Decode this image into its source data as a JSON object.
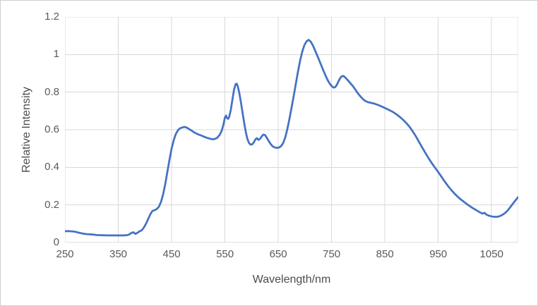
{
  "colors": {
    "series_line": "#4472C4",
    "gridline": "#D9D9D9",
    "axis_line": "#BFBFBF",
    "tick_text": "#595959",
    "title_text": "#4D4D4D",
    "background": "#FFFFFF",
    "frame_border": "#D0D0D0"
  },
  "chart_data": {
    "type": "line",
    "title": "",
    "xlabel": "Wavelength/nm",
    "ylabel": "Relative Intensity",
    "xlim": [
      250,
      1100
    ],
    "ylim": [
      0,
      1.2
    ],
    "x_ticks": [
      "250",
      "350",
      "450",
      "550",
      "650",
      "750",
      "850",
      "950",
      "1050"
    ],
    "y_ticks": [
      "0",
      "0.2",
      "0.4",
      "0.6",
      "0.8",
      "1",
      "1.2"
    ],
    "grid": true,
    "legend": "none",
    "line_smooth": true,
    "series": [
      {
        "name": "Relative Intensity",
        "color": "#4472C4",
        "points": [
          [
            250,
            0.06
          ],
          [
            255,
            0.061
          ],
          [
            260,
            0.06
          ],
          [
            265,
            0.059
          ],
          [
            270,
            0.057
          ],
          [
            275,
            0.053
          ],
          [
            280,
            0.05
          ],
          [
            285,
            0.047
          ],
          [
            290,
            0.045
          ],
          [
            295,
            0.044
          ],
          [
            300,
            0.043
          ],
          [
            310,
            0.04
          ],
          [
            320,
            0.039
          ],
          [
            330,
            0.038
          ],
          [
            340,
            0.038
          ],
          [
            350,
            0.038
          ],
          [
            360,
            0.038
          ],
          [
            365,
            0.039
          ],
          [
            370,
            0.042
          ],
          [
            374,
            0.05
          ],
          [
            378,
            0.055
          ],
          [
            382,
            0.046
          ],
          [
            386,
            0.052
          ],
          [
            390,
            0.06
          ],
          [
            394,
            0.065
          ],
          [
            398,
            0.08
          ],
          [
            402,
            0.1
          ],
          [
            406,
            0.125
          ],
          [
            410,
            0.15
          ],
          [
            414,
            0.168
          ],
          [
            418,
            0.172
          ],
          [
            422,
            0.178
          ],
          [
            426,
            0.19
          ],
          [
            430,
            0.215
          ],
          [
            434,
            0.255
          ],
          [
            438,
            0.31
          ],
          [
            442,
            0.375
          ],
          [
            446,
            0.44
          ],
          [
            450,
            0.5
          ],
          [
            454,
            0.545
          ],
          [
            458,
            0.578
          ],
          [
            462,
            0.598
          ],
          [
            466,
            0.608
          ],
          [
            470,
            0.612
          ],
          [
            474,
            0.615
          ],
          [
            478,
            0.612
          ],
          [
            482,
            0.605
          ],
          [
            486,
            0.598
          ],
          [
            490,
            0.59
          ],
          [
            495,
            0.582
          ],
          [
            500,
            0.575
          ],
          [
            505,
            0.57
          ],
          [
            510,
            0.564
          ],
          [
            515,
            0.558
          ],
          [
            520,
            0.554
          ],
          [
            525,
            0.55
          ],
          [
            530,
            0.55
          ],
          [
            535,
            0.556
          ],
          [
            540,
            0.572
          ],
          [
            544,
            0.595
          ],
          [
            547,
            0.625
          ],
          [
            550,
            0.665
          ],
          [
            552,
            0.675
          ],
          [
            554,
            0.662
          ],
          [
            556,
            0.658
          ],
          [
            558,
            0.668
          ],
          [
            561,
            0.705
          ],
          [
            564,
            0.76
          ],
          [
            567,
            0.812
          ],
          [
            570,
            0.842
          ],
          [
            572,
            0.845
          ],
          [
            574,
            0.832
          ],
          [
            577,
            0.795
          ],
          [
            580,
            0.745
          ],
          [
            583,
            0.692
          ],
          [
            586,
            0.638
          ],
          [
            589,
            0.59
          ],
          [
            592,
            0.552
          ],
          [
            595,
            0.53
          ],
          [
            598,
            0.521
          ],
          [
            601,
            0.522
          ],
          [
            604,
            0.532
          ],
          [
            607,
            0.548
          ],
          [
            610,
            0.555
          ],
          [
            613,
            0.546
          ],
          [
            616,
            0.552
          ],
          [
            619,
            0.565
          ],
          [
            622,
            0.574
          ],
          [
            625,
            0.572
          ],
          [
            628,
            0.56
          ],
          [
            631,
            0.545
          ],
          [
            635,
            0.527
          ],
          [
            639,
            0.513
          ],
          [
            643,
            0.506
          ],
          [
            647,
            0.504
          ],
          [
            651,
            0.505
          ],
          [
            655,
            0.512
          ],
          [
            659,
            0.528
          ],
          [
            663,
            0.558
          ],
          [
            667,
            0.603
          ],
          [
            671,
            0.658
          ],
          [
            675,
            0.718
          ],
          [
            679,
            0.78
          ],
          [
            683,
            0.845
          ],
          [
            687,
            0.91
          ],
          [
            691,
            0.968
          ],
          [
            695,
            1.015
          ],
          [
            699,
            1.05
          ],
          [
            703,
            1.07
          ],
          [
            707,
            1.078
          ],
          [
            711,
            1.068
          ],
          [
            715,
            1.048
          ],
          [
            719,
            1.022
          ],
          [
            723,
            0.995
          ],
          [
            727,
            0.968
          ],
          [
            731,
            0.94
          ],
          [
            735,
            0.912
          ],
          [
            739,
            0.886
          ],
          [
            743,
            0.862
          ],
          [
            747,
            0.843
          ],
          [
            751,
            0.83
          ],
          [
            754,
            0.824
          ],
          [
            757,
            0.827
          ],
          [
            760,
            0.84
          ],
          [
            763,
            0.858
          ],
          [
            766,
            0.874
          ],
          [
            769,
            0.884
          ],
          [
            772,
            0.886
          ],
          [
            775,
            0.88
          ],
          [
            778,
            0.871
          ],
          [
            782,
            0.858
          ],
          [
            786,
            0.845
          ],
          [
            790,
            0.832
          ],
          [
            794,
            0.816
          ],
          [
            798,
            0.799
          ],
          [
            802,
            0.784
          ],
          [
            806,
            0.771
          ],
          [
            810,
            0.76
          ],
          [
            814,
            0.752
          ],
          [
            818,
            0.747
          ],
          [
            824,
            0.743
          ],
          [
            830,
            0.739
          ],
          [
            836,
            0.733
          ],
          [
            842,
            0.726
          ],
          [
            848,
            0.718
          ],
          [
            854,
            0.71
          ],
          [
            860,
            0.702
          ],
          [
            866,
            0.693
          ],
          [
            872,
            0.681
          ],
          [
            878,
            0.668
          ],
          [
            884,
            0.653
          ],
          [
            890,
            0.636
          ],
          [
            896,
            0.616
          ],
          [
            902,
            0.592
          ],
          [
            908,
            0.565
          ],
          [
            914,
            0.535
          ],
          [
            920,
            0.505
          ],
          [
            926,
            0.476
          ],
          [
            932,
            0.448
          ],
          [
            938,
            0.422
          ],
          [
            944,
            0.398
          ],
          [
            950,
            0.375
          ],
          [
            956,
            0.35
          ],
          [
            962,
            0.325
          ],
          [
            968,
            0.302
          ],
          [
            974,
            0.281
          ],
          [
            980,
            0.262
          ],
          [
            986,
            0.245
          ],
          [
            992,
            0.23
          ],
          [
            998,
            0.217
          ],
          [
            1004,
            0.204
          ],
          [
            1010,
            0.192
          ],
          [
            1016,
            0.181
          ],
          [
            1022,
            0.171
          ],
          [
            1028,
            0.161
          ],
          [
            1033,
            0.154
          ],
          [
            1037,
            0.158
          ],
          [
            1040,
            0.149
          ],
          [
            1045,
            0.143
          ],
          [
            1050,
            0.139
          ],
          [
            1055,
            0.137
          ],
          [
            1060,
            0.137
          ],
          [
            1065,
            0.14
          ],
          [
            1070,
            0.147
          ],
          [
            1075,
            0.156
          ],
          [
            1080,
            0.17
          ],
          [
            1085,
            0.188
          ],
          [
            1090,
            0.207
          ],
          [
            1095,
            0.225
          ],
          [
            1100,
            0.242
          ]
        ]
      }
    ]
  }
}
